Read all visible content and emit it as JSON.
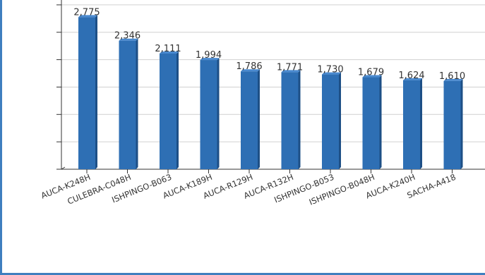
{
  "chart_data": {
    "type": "bar",
    "title": "",
    "xlabel": "",
    "ylabel": "",
    "categories": [
      "AUCA-K248H",
      "CULEBRA-C048H",
      "ISHPINGO-B063",
      "AUCA-K189H",
      "AUCA-R129H",
      "AUCA-R132H",
      "ISHPINGO-B053",
      "ISHPINGO-B048H",
      "AUCA-K240H",
      "SACHA-A418"
    ],
    "values": [
      2775,
      2346,
      2111,
      1994,
      1786,
      1771,
      1730,
      1679,
      1624,
      1610
    ],
    "value_labels": [
      "2,775",
      "2,346",
      "2,111",
      "1,994",
      "1,786",
      "1,771",
      "1,730",
      "1,679",
      "1,624",
      "1,610"
    ],
    "ylim": [
      0,
      3000
    ],
    "y_ticks": [
      0,
      500,
      1000,
      1500,
      2000,
      2500,
      3000
    ],
    "grid": true,
    "legend": "none",
    "colors": {
      "bar_front": "#2e6fb4",
      "bar_side": "#1d4f86",
      "bar_top": "#4a8ad0",
      "grid": "#d0d0d0",
      "axis": "#333333",
      "frame": "#3f7fbf"
    }
  }
}
